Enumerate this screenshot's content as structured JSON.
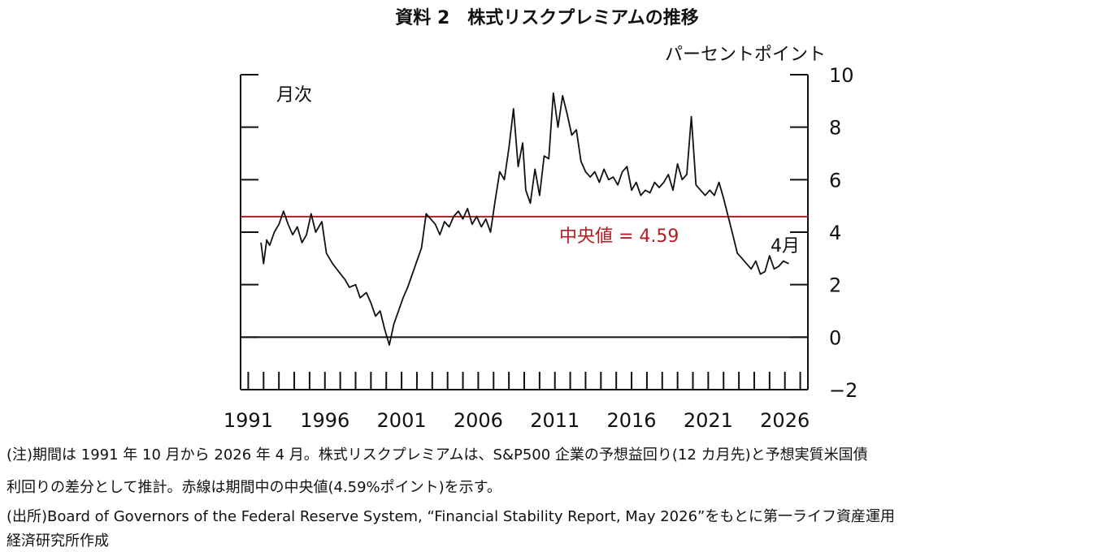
{
  "chart_data": {
    "type": "line",
    "title": "資料 2　株式リスクプレミアムの推移",
    "unit_label": "パーセントポイント",
    "frequency_label": "月次",
    "latest_label": "4月",
    "ylim": [
      -2,
      10
    ],
    "yticks": [
      "10",
      "8",
      "6",
      "4",
      "2",
      "0",
      "−2"
    ],
    "xlim": [
      1990.5,
      2027.5
    ],
    "xticks": [
      1991,
      1996,
      2001,
      2006,
      2011,
      2016,
      2021,
      2026
    ],
    "xtick_labels": [
      "1991",
      "1996",
      "2001",
      "2006",
      "2011",
      "2016",
      "2021",
      "2026"
    ],
    "median": {
      "value": 4.59,
      "label": "中央値 = 4.59",
      "color": "#b01e23"
    },
    "zero_line": 0,
    "series": [
      {
        "line_color": "#111111",
        "x": [
          1991.83,
          1992.0,
          1992.2,
          1992.4,
          1992.7,
          1993.0,
          1993.3,
          1993.6,
          1993.9,
          1994.2,
          1994.5,
          1994.8,
          1995.1,
          1995.4,
          1995.8,
          1996.1,
          1996.5,
          1996.9,
          1997.3,
          1997.6,
          1998.0,
          1998.3,
          1998.7,
          1999.0,
          1999.3,
          1999.6,
          1999.9,
          2000.2,
          2000.5,
          2000.8,
          2001.1,
          2001.4,
          2001.7,
          2002.0,
          2002.3,
          2002.6,
          2002.9,
          2003.2,
          2003.5,
          2003.8,
          2004.1,
          2004.4,
          2004.7,
          2005.0,
          2005.3,
          2005.6,
          2005.9,
          2006.2,
          2006.5,
          2006.8,
          2007.1,
          2007.4,
          2007.7,
          2008.0,
          2008.3,
          2008.6,
          2008.9,
          2009.1,
          2009.4,
          2009.7,
          2010.0,
          2010.3,
          2010.6,
          2010.9,
          2011.2,
          2011.5,
          2011.8,
          2012.1,
          2012.4,
          2012.7,
          2013.0,
          2013.3,
          2013.6,
          2013.9,
          2014.2,
          2014.5,
          2014.8,
          2015.1,
          2015.4,
          2015.7,
          2016.0,
          2016.3,
          2016.6,
          2016.9,
          2017.2,
          2017.5,
          2017.8,
          2018.1,
          2018.4,
          2018.7,
          2019.0,
          2019.3,
          2019.6,
          2019.9,
          2020.2,
          2020.5,
          2020.8,
          2021.1,
          2021.4,
          2021.7,
          2022.0,
          2022.3,
          2022.6,
          2022.9,
          2023.2,
          2023.5,
          2023.8,
          2024.1,
          2024.4,
          2024.7,
          2025.0,
          2025.3,
          2025.6,
          2025.9,
          2026.25
        ],
        "y": [
          3.6,
          2.8,
          3.7,
          3.5,
          4.0,
          4.3,
          4.8,
          4.3,
          3.9,
          4.2,
          3.6,
          3.9,
          4.7,
          4.0,
          4.4,
          3.2,
          2.8,
          2.5,
          2.2,
          1.9,
          2.0,
          1.5,
          1.7,
          1.3,
          0.8,
          1.0,
          0.3,
          -0.3,
          0.5,
          1.0,
          1.5,
          1.9,
          2.4,
          2.9,
          3.4,
          4.7,
          4.5,
          4.3,
          3.9,
          4.4,
          4.2,
          4.6,
          4.8,
          4.5,
          4.9,
          4.3,
          4.6,
          4.2,
          4.5,
          4.0,
          5.2,
          6.3,
          6.0,
          7.2,
          8.7,
          6.5,
          7.4,
          5.6,
          5.1,
          6.4,
          5.4,
          6.9,
          6.8,
          9.3,
          8.0,
          9.2,
          8.5,
          7.7,
          7.9,
          6.7,
          6.3,
          6.1,
          6.3,
          5.9,
          6.4,
          6.0,
          6.1,
          5.8,
          6.3,
          6.5,
          5.6,
          5.9,
          5.4,
          5.6,
          5.5,
          5.9,
          5.7,
          5.9,
          6.2,
          5.6,
          6.6,
          6.0,
          6.2,
          8.4,
          5.8,
          5.6,
          5.4,
          5.6,
          5.4,
          5.9,
          5.3,
          4.6,
          3.9,
          3.2,
          3.0,
          2.8,
          2.6,
          2.9,
          2.4,
          2.5,
          3.1,
          2.6,
          2.7,
          2.9,
          2.8
        ]
      }
    ]
  },
  "notes": {
    "note1": "(注)期間は 1991 年 10 月から 2026 年 4 月。株式リスクプレミアムは、S&P500 企業の予想益回り(12 カ月先)と予想実質米国債",
    "note2": "利回りの差分として推計。赤線は期間中の中央値(4.59%ポイント)を示す。",
    "source1": "(出所)Board of Governors of the Federal Reserve System, “Financial Stability Report, May 2026”をもとに第一ライフ資産運用",
    "source2": "経済研究所作成"
  }
}
